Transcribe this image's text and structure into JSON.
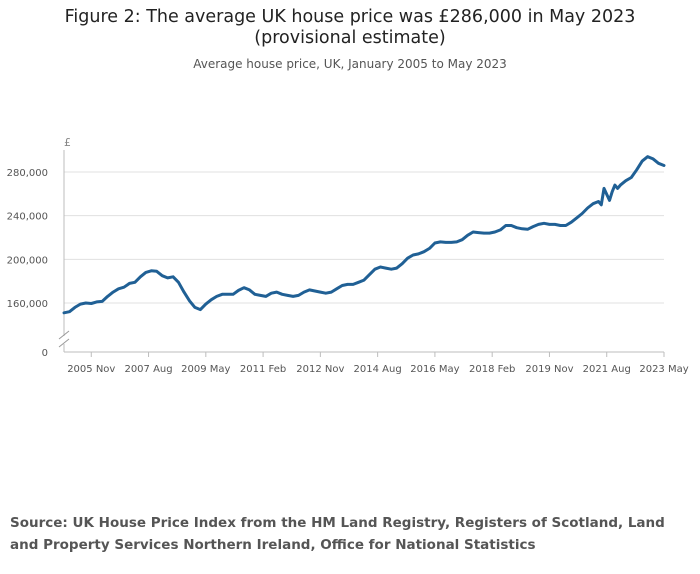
{
  "title": "Figure 2: The average UK house price was £286,000 in May 2023 (provisional estimate)",
  "subtitle": "Average house price, UK, January 2005 to May 2023",
  "source": "Source: UK House Price Index from the HM Land Registry, Registers of Scotland, Land and Property Services Northern Ireland, Office for National Statistics",
  "colors": {
    "line": "#206095",
    "grid": "#e0e0e0",
    "axis": "#bdbdbd",
    "text": "#555555"
  },
  "chart_data": {
    "type": "line",
    "title": "Figure 2: The average UK house price was £286,000 in May 2023 (provisional estimate)",
    "subtitle": "Average house price, UK, January 2005 to May 2023",
    "ylabel": "£",
    "xlabel": "",
    "ylim": [
      0,
      300000
    ],
    "y_axis_break": [
      0,
      145000
    ],
    "yticks": [
      0,
      160000,
      200000,
      240000,
      280000
    ],
    "ytick_labels": [
      "0",
      "160,000",
      "200,000",
      "240,000",
      "280,000"
    ],
    "xticks": [
      "2005 Nov",
      "2007 Aug",
      "2009 May",
      "2011 Feb",
      "2012 Nov",
      "2014 Aug",
      "2016 May",
      "2018 Feb",
      "2019 Nov",
      "2021 Aug",
      "2023 May"
    ],
    "xlim": [
      "2005 Jan",
      "2023 May"
    ],
    "grid": true,
    "series": [
      {
        "name": "Average house price",
        "x": [
          "2005 Jan",
          "2005 Mar",
          "2005 May",
          "2005 Jul",
          "2005 Sep",
          "2005 Nov",
          "2006 Jan",
          "2006 Mar",
          "2006 May",
          "2006 Jul",
          "2006 Sep",
          "2006 Nov",
          "2007 Jan",
          "2007 Mar",
          "2007 May",
          "2007 Jul",
          "2007 Sep",
          "2007 Nov",
          "2008 Jan",
          "2008 Mar",
          "2008 May",
          "2008 Jul",
          "2008 Sep",
          "2008 Nov",
          "2009 Jan",
          "2009 Mar",
          "2009 May",
          "2009 Jul",
          "2009 Sep",
          "2009 Nov",
          "2010 Jan",
          "2010 Mar",
          "2010 May",
          "2010 Jul",
          "2010 Sep",
          "2010 Nov",
          "2011 Jan",
          "2011 Mar",
          "2011 May",
          "2011 Jul",
          "2011 Sep",
          "2011 Nov",
          "2012 Jan",
          "2012 Mar",
          "2012 May",
          "2012 Jul",
          "2012 Sep",
          "2012 Nov",
          "2013 Jan",
          "2013 Mar",
          "2013 May",
          "2013 Jul",
          "2013 Sep",
          "2013 Nov",
          "2014 Jan",
          "2014 Mar",
          "2014 May",
          "2014 Jul",
          "2014 Sep",
          "2014 Nov",
          "2015 Jan",
          "2015 Mar",
          "2015 May",
          "2015 Jul",
          "2015 Sep",
          "2015 Nov",
          "2016 Jan",
          "2016 Mar",
          "2016 May",
          "2016 Jul",
          "2016 Sep",
          "2016 Nov",
          "2017 Jan",
          "2017 Mar",
          "2017 May",
          "2017 Jul",
          "2017 Sep",
          "2017 Nov",
          "2018 Jan",
          "2018 Mar",
          "2018 May",
          "2018 Jul",
          "2018 Sep",
          "2018 Nov",
          "2019 Jan",
          "2019 Mar",
          "2019 May",
          "2019 Jul",
          "2019 Sep",
          "2019 Nov",
          "2020 Jan",
          "2020 Mar",
          "2020 May",
          "2020 Jul",
          "2020 Sep",
          "2020 Nov",
          "2021 Jan",
          "2021 Mar",
          "2021 May",
          "2021 Jun",
          "2021 Jul",
          "2021 Sep",
          "2021 Oct",
          "2021 Nov",
          "2021 Dec",
          "2022 Jan",
          "2022 Mar",
          "2022 May",
          "2022 Jul",
          "2022 Sep",
          "2022 Nov",
          "2023 Jan",
          "2023 Mar",
          "2023 May"
        ],
        "values": [
          151000,
          152000,
          156000,
          159000,
          160000,
          159500,
          161000,
          161500,
          166000,
          170000,
          173000,
          174500,
          178000,
          179000,
          184000,
          188000,
          189500,
          189000,
          185000,
          183000,
          184000,
          179000,
          170000,
          162000,
          156000,
          154000,
          159000,
          163000,
          166000,
          168000,
          168000,
          168000,
          171500,
          174000,
          172000,
          168000,
          167000,
          166000,
          169000,
          170000,
          168000,
          167000,
          166000,
          167000,
          170000,
          172000,
          171000,
          170000,
          169000,
          170000,
          173000,
          176000,
          177000,
          177000,
          179000,
          181000,
          186000,
          191000,
          193000,
          192000,
          191000,
          192000,
          196000,
          201000,
          204000,
          205000,
          207000,
          210000,
          215000,
          216000,
          215500,
          215500,
          216000,
          218000,
          222000,
          225000,
          224500,
          224000,
          224000,
          225000,
          227000,
          231000,
          231000,
          229000,
          228000,
          227500,
          230000,
          232000,
          233000,
          232000,
          232000,
          231000,
          231000,
          234000,
          238000,
          242000,
          247000,
          251000,
          253000,
          250000,
          265000,
          254000,
          262000,
          268000,
          265000,
          268000,
          272000,
          275000,
          282000,
          290000,
          294000,
          292000,
          288000,
          286000
        ]
      }
    ]
  }
}
